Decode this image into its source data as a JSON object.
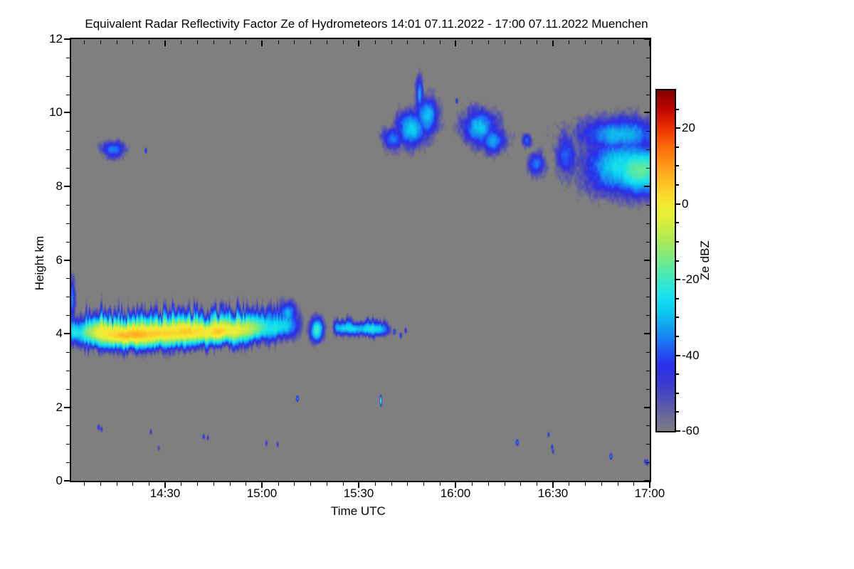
{
  "chart_data": {
    "type": "heatmap",
    "title": "Equivalent Radar Reflectivity Factor Ze of Hydrometeors   14:01 07.11.2022 - 17:00 07.11.2022 Muenchen",
    "xlabel": "Time UTC",
    "ylabel": "Height km",
    "background_color": "#7f7f7f",
    "x_axis": {
      "start_minutes_after_1400": 1,
      "end_minutes_after_1400": 180,
      "major_ticks": [
        {
          "minutes": 30,
          "label": "14:30"
        },
        {
          "minutes": 60,
          "label": "15:00"
        },
        {
          "minutes": 90,
          "label": "15:30"
        },
        {
          "minutes": 120,
          "label": "16:00"
        },
        {
          "minutes": 150,
          "label": "16:30"
        },
        {
          "minutes": 180,
          "label": "17:00"
        }
      ],
      "minor_step_minutes": 5
    },
    "y_axis": {
      "min_km": 0,
      "max_km": 12,
      "major_ticks": [
        {
          "km": 0,
          "label": "0"
        },
        {
          "km": 2,
          "label": "2"
        },
        {
          "km": 4,
          "label": "4"
        },
        {
          "km": 6,
          "label": "6"
        },
        {
          "km": 8,
          "label": "8"
        },
        {
          "km": 10,
          "label": "10"
        },
        {
          "km": 12,
          "label": "12"
        }
      ],
      "minor_step_km": 0.5
    },
    "colorbar": {
      "label": "Ze dBZ",
      "min": -60,
      "max": 30,
      "major_ticks": [
        {
          "value": 20,
          "label": "20"
        },
        {
          "value": 0,
          "label": "0"
        },
        {
          "value": -20,
          "label": "-20"
        },
        {
          "value": -40,
          "label": "-40"
        },
        {
          "value": -60,
          "label": "-60"
        }
      ],
      "minor_step": 5,
      "stops": [
        [
          0.0,
          "#7b7b81"
        ],
        [
          0.045,
          "#68689b"
        ],
        [
          0.09,
          "#5151b4"
        ],
        [
          0.14,
          "#3a3ad2"
        ],
        [
          0.19,
          "#2b2fe8"
        ],
        [
          0.23,
          "#2253f2"
        ],
        [
          0.27,
          "#1a7df2"
        ],
        [
          0.31,
          "#12a5ee"
        ],
        [
          0.35,
          "#0ccaf0"
        ],
        [
          0.39,
          "#16dfee"
        ],
        [
          0.43,
          "#32e6d2"
        ],
        [
          0.47,
          "#55e9a8"
        ],
        [
          0.51,
          "#7dea7e"
        ],
        [
          0.55,
          "#a3e95f"
        ],
        [
          0.59,
          "#c6ec48"
        ],
        [
          0.63,
          "#e4ee3a"
        ],
        [
          0.665,
          "#f4ea32"
        ],
        [
          0.7,
          "#fbd52c"
        ],
        [
          0.745,
          "#ffb321"
        ],
        [
          0.79,
          "#ff9016"
        ],
        [
          0.835,
          "#fb680b"
        ],
        [
          0.875,
          "#f04004"
        ],
        [
          0.91,
          "#dd1d00"
        ],
        [
          0.945,
          "#bc0600"
        ],
        [
          1.0,
          "#840000"
        ]
      ]
    },
    "features": [
      {
        "kind": "band",
        "name": "main-precip-band",
        "sh_top": 0.34,
        "sh_bot": 0.27,
        "speckle": 20,
        "peak_env": [
          [
            0.5,
            -75
          ],
          [
            1,
            -28
          ],
          [
            2,
            -24
          ],
          [
            4,
            -26
          ],
          [
            5,
            -16
          ],
          [
            7,
            -8
          ],
          [
            10,
            0
          ],
          [
            14,
            3
          ],
          [
            18,
            4
          ],
          [
            22,
            5
          ],
          [
            26,
            4
          ],
          [
            30,
            5
          ],
          [
            34,
            5
          ],
          [
            38,
            5
          ],
          [
            42,
            4
          ],
          [
            46,
            3
          ],
          [
            50,
            1
          ],
          [
            53,
            -3
          ],
          [
            56,
            -8
          ],
          [
            58,
            -14
          ],
          [
            60,
            -20
          ],
          [
            62,
            -24
          ],
          [
            64,
            -23
          ],
          [
            66,
            -26
          ],
          [
            68,
            -30
          ],
          [
            70,
            -40
          ],
          [
            72,
            -52
          ],
          [
            74,
            -70
          ]
        ],
        "center": [
          [
            1,
            4.05
          ],
          [
            15,
            3.95
          ],
          [
            30,
            4.0
          ],
          [
            45,
            4.05
          ],
          [
            55,
            4.1
          ],
          [
            60,
            4.15
          ],
          [
            74,
            4.2
          ]
        ]
      },
      {
        "kind": "band",
        "name": "broken-band",
        "sh_top": 0.16,
        "sh_bot": 0.14,
        "speckle": 22,
        "peak_env": [
          [
            81,
            -75
          ],
          [
            83,
            -32
          ],
          [
            85,
            -27
          ],
          [
            88,
            -25
          ],
          [
            91,
            -28
          ],
          [
            94,
            -26
          ],
          [
            97,
            -32
          ],
          [
            99,
            -45
          ],
          [
            101,
            -70
          ]
        ],
        "center": [
          [
            81,
            4.15
          ],
          [
            101,
            4.1
          ]
        ]
      },
      {
        "kind": "blob",
        "name": "left-edge-plume",
        "t": 1.3,
        "h": 4.95,
        "rt": 0.85,
        "rh": 0.5,
        "peak": -36,
        "speckle": 22
      },
      {
        "kind": "blob",
        "name": "band-tail-tower",
        "t": 68,
        "h": 4.55,
        "rt": 2.2,
        "rh": 0.28,
        "peak": -30,
        "speckle": 22
      },
      {
        "kind": "blob",
        "name": "cyan-patch-1508",
        "t": 77,
        "h": 4.1,
        "rt": 1.7,
        "rh": 0.26,
        "peak": -19,
        "speckle": 20
      },
      {
        "kind": "blob",
        "name": "cirrus-1414",
        "t": 14,
        "h": 9.0,
        "rt": 3.0,
        "rh": 0.2,
        "peak": -34,
        "speckle": 24
      },
      {
        "kind": "blob",
        "name": "cirrus-1545-main",
        "t": 106.5,
        "h": 9.55,
        "rt": 3.8,
        "rh": 0.4,
        "peak": -27,
        "speckle": 24
      },
      {
        "kind": "blob",
        "name": "cirrus-1545-upper",
        "t": 111,
        "h": 9.9,
        "rt": 3.0,
        "rh": 0.45,
        "peak": -29,
        "speckle": 24
      },
      {
        "kind": "blob",
        "name": "cirrus-1545-finger",
        "t": 108.8,
        "h": 10.5,
        "rt": 1.0,
        "rh": 0.4,
        "peak": -32,
        "speckle": 22
      },
      {
        "kind": "blob",
        "name": "cirrus-1545-arm",
        "t": 100.5,
        "h": 9.3,
        "rt": 2.6,
        "rh": 0.25,
        "peak": -35,
        "speckle": 26
      },
      {
        "kind": "blob",
        "name": "cirrus-1607",
        "t": 127.5,
        "h": 9.6,
        "rt": 4.5,
        "rh": 0.4,
        "peak": -29,
        "speckle": 26
      },
      {
        "kind": "blob",
        "name": "cirrus-1612-low",
        "t": 131.5,
        "h": 9.25,
        "rt": 3.6,
        "rh": 0.3,
        "peak": -32,
        "speckle": 26
      },
      {
        "kind": "blob",
        "name": "scrap-1622-high",
        "t": 142,
        "h": 9.25,
        "rt": 1.2,
        "rh": 0.16,
        "peak": -38,
        "speckle": 24
      },
      {
        "kind": "blob",
        "name": "scrap-1625-low",
        "t": 145,
        "h": 8.6,
        "rt": 2.2,
        "rh": 0.26,
        "peak": -35,
        "speckle": 26
      },
      {
        "kind": "blob",
        "name": "anvil-1652-main",
        "t": 172,
        "h": 8.55,
        "rt": 10,
        "rh": 0.62,
        "peak": -24,
        "speckle": 22
      },
      {
        "kind": "blob",
        "name": "anvil-1652-core",
        "t": 177,
        "h": 8.45,
        "rt": 8.5,
        "rh": 0.55,
        "peak": -16,
        "speckle": 16
      },
      {
        "kind": "blob",
        "name": "anvil-1652-top",
        "t": 171,
        "h": 9.4,
        "rt": 11,
        "rh": 0.4,
        "peak": -30,
        "speckle": 24
      },
      {
        "kind": "blob",
        "name": "anvil-left-fringe",
        "t": 154,
        "h": 8.85,
        "rt": 2.6,
        "rh": 0.5,
        "peak": -38,
        "speckle": 28
      },
      {
        "kind": "speck",
        "t": 12.7,
        "h": 4.6,
        "peak": -38
      },
      {
        "kind": "speck",
        "t": 24.1,
        "h": 8.97,
        "peak": -40
      },
      {
        "kind": "speck",
        "t": 9.5,
        "h": 1.45,
        "peak": -40
      },
      {
        "kind": "speck",
        "t": 10.4,
        "h": 1.4,
        "peak": -44
      },
      {
        "kind": "speck",
        "t": 25.7,
        "h": 1.33,
        "peak": -45
      },
      {
        "kind": "speck",
        "t": 28.1,
        "h": 0.89,
        "peak": -48
      },
      {
        "kind": "speck",
        "t": 42,
        "h": 1.2,
        "peak": -44
      },
      {
        "kind": "speck",
        "t": 43.3,
        "h": 1.17,
        "peak": -46
      },
      {
        "kind": "speck",
        "t": 61.4,
        "h": 1.02,
        "peak": -44
      },
      {
        "kind": "speck",
        "t": 64.9,
        "h": 0.99,
        "peak": -46
      },
      {
        "kind": "speck",
        "t": 71,
        "h": 2.23,
        "peak": -33
      },
      {
        "kind": "speck",
        "t": 96.8,
        "h": 2.18,
        "peak": -11,
        "rt": 0.22,
        "rh": 0.1
      },
      {
        "kind": "speck",
        "t": 101,
        "h": 4.05,
        "peak": -36
      },
      {
        "kind": "speck",
        "t": 103,
        "h": 3.95,
        "peak": -38
      },
      {
        "kind": "speck",
        "t": 104.5,
        "h": 4.08,
        "peak": -40
      },
      {
        "kind": "speck",
        "t": 120.3,
        "h": 10.32,
        "peak": -40
      },
      {
        "kind": "speck",
        "t": 139,
        "h": 1.04,
        "peak": -33
      },
      {
        "kind": "speck",
        "t": 148.7,
        "h": 1.25,
        "peak": -45
      },
      {
        "kind": "speck",
        "t": 149.8,
        "h": 0.92,
        "peak": -44
      },
      {
        "kind": "speck",
        "t": 150.1,
        "h": 0.8,
        "peak": -46
      },
      {
        "kind": "speck",
        "t": 168,
        "h": 0.66,
        "peak": -32
      },
      {
        "kind": "speck",
        "t": 178.6,
        "h": 0.52,
        "peak": -44
      },
      {
        "kind": "speck",
        "t": 179.2,
        "h": 0.5,
        "peak": -35
      }
    ]
  }
}
